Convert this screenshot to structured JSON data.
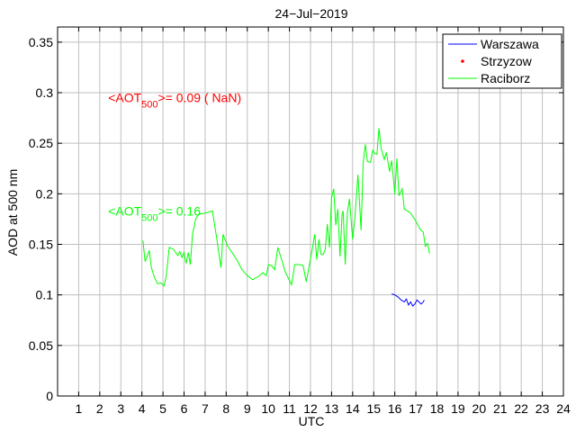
{
  "chart_data": {
    "type": "line",
    "title": "24−Jul−2019",
    "xlabel": "UTC",
    "ylabel": "AOD at 500 nm",
    "xlim": [
      0,
      24
    ],
    "ylim": [
      0,
      0.365
    ],
    "grid": true,
    "legend_position": "top-right",
    "x_ticks": [
      "1",
      "2",
      "3",
      "4",
      "5",
      "6",
      "7",
      "8",
      "9",
      "10",
      "11",
      "12",
      "13",
      "14",
      "15",
      "16",
      "17",
      "18",
      "19",
      "20",
      "21",
      "22",
      "23",
      "24"
    ],
    "y_ticks": [
      "0",
      "0.05",
      "0.1",
      "0.15",
      "0.2",
      "0.25",
      "0.3",
      "0.35"
    ],
    "x_tick_values": [
      1,
      2,
      3,
      4,
      5,
      6,
      7,
      8,
      9,
      10,
      11,
      12,
      13,
      14,
      15,
      16,
      17,
      18,
      19,
      20,
      21,
      22,
      23,
      24
    ],
    "y_tick_values": [
      0,
      0.05,
      0.1,
      0.15,
      0.2,
      0.25,
      0.3,
      0.35
    ],
    "series": [
      {
        "name": "Warszawa",
        "color": "#0000ff",
        "style": "line",
        "points": [
          [
            15.85,
            0.101
          ],
          [
            16.0,
            0.1
          ],
          [
            16.15,
            0.098
          ],
          [
            16.3,
            0.095
          ],
          [
            16.45,
            0.093
          ],
          [
            16.55,
            0.096
          ],
          [
            16.65,
            0.09
          ],
          [
            16.75,
            0.093
          ],
          [
            16.85,
            0.089
          ],
          [
            16.95,
            0.091
          ],
          [
            17.05,
            0.095
          ],
          [
            17.15,
            0.093
          ],
          [
            17.25,
            0.091
          ],
          [
            17.35,
            0.093
          ],
          [
            17.4,
            0.095
          ]
        ]
      },
      {
        "name": "Strzyzow",
        "color": "#ff0000",
        "style": "marker",
        "points": []
      },
      {
        "name": "Raciborz",
        "color": "#00ff00",
        "style": "line",
        "points": [
          [
            4.05,
            0.154
          ],
          [
            4.15,
            0.133
          ],
          [
            4.25,
            0.138
          ],
          [
            4.35,
            0.144
          ],
          [
            4.45,
            0.127
          ],
          [
            4.6,
            0.117
          ],
          [
            4.75,
            0.111
          ],
          [
            4.9,
            0.112
          ],
          [
            5.05,
            0.109
          ],
          [
            5.15,
            0.118
          ],
          [
            5.3,
            0.147
          ],
          [
            5.5,
            0.145
          ],
          [
            5.7,
            0.139
          ],
          [
            5.8,
            0.143
          ],
          [
            5.9,
            0.137
          ],
          [
            6.0,
            0.142
          ],
          [
            6.1,
            0.131
          ],
          [
            6.2,
            0.142
          ],
          [
            6.3,
            0.13
          ],
          [
            6.4,
            0.16
          ],
          [
            6.55,
            0.175
          ],
          [
            6.7,
            0.18
          ],
          [
            7.0,
            0.181
          ],
          [
            7.35,
            0.183
          ],
          [
            7.55,
            0.156
          ],
          [
            7.75,
            0.127
          ],
          [
            7.85,
            0.16
          ],
          [
            8.05,
            0.149
          ],
          [
            8.5,
            0.135
          ],
          [
            8.75,
            0.125
          ],
          [
            9.0,
            0.119
          ],
          [
            9.25,
            0.115
          ],
          [
            9.5,
            0.118
          ],
          [
            9.75,
            0.122
          ],
          [
            9.9,
            0.119
          ],
          [
            10.0,
            0.13
          ],
          [
            10.15,
            0.129
          ],
          [
            10.3,
            0.125
          ],
          [
            10.45,
            0.147
          ],
          [
            10.6,
            0.137
          ],
          [
            10.8,
            0.123
          ],
          [
            11.1,
            0.11
          ],
          [
            11.25,
            0.13
          ],
          [
            11.5,
            0.13
          ],
          [
            11.65,
            0.129
          ],
          [
            11.8,
            0.113
          ],
          [
            11.95,
            0.13
          ],
          [
            12.1,
            0.147
          ],
          [
            12.2,
            0.16
          ],
          [
            12.3,
            0.135
          ],
          [
            12.4,
            0.155
          ],
          [
            12.5,
            0.14
          ],
          [
            12.6,
            0.14
          ],
          [
            12.7,
            0.145
          ],
          [
            12.8,
            0.17
          ],
          [
            12.9,
            0.147
          ],
          [
            13.0,
            0.196
          ],
          [
            13.1,
            0.205
          ],
          [
            13.2,
            0.169
          ],
          [
            13.3,
            0.185
          ],
          [
            13.4,
            0.138
          ],
          [
            13.5,
            0.18
          ],
          [
            13.55,
            0.183
          ],
          [
            13.65,
            0.13
          ],
          [
            13.75,
            0.182
          ],
          [
            13.85,
            0.195
          ],
          [
            14.0,
            0.155
          ],
          [
            14.1,
            0.175
          ],
          [
            14.25,
            0.219
          ],
          [
            14.4,
            0.164
          ],
          [
            14.5,
            0.23
          ],
          [
            14.6,
            0.249
          ],
          [
            14.7,
            0.232
          ],
          [
            14.85,
            0.231
          ],
          [
            14.95,
            0.243
          ],
          [
            15.05,
            0.24
          ],
          [
            15.15,
            0.239
          ],
          [
            15.25,
            0.265
          ],
          [
            15.35,
            0.245
          ],
          [
            15.5,
            0.234
          ],
          [
            15.6,
            0.241
          ],
          [
            15.75,
            0.222
          ],
          [
            15.85,
            0.233
          ],
          [
            16.0,
            0.2
          ],
          [
            16.1,
            0.235
          ],
          [
            16.2,
            0.198
          ],
          [
            16.35,
            0.205
          ],
          [
            16.45,
            0.185
          ],
          [
            16.75,
            0.181
          ],
          [
            17.0,
            0.173
          ],
          [
            17.2,
            0.165
          ],
          [
            17.35,
            0.162
          ],
          [
            17.45,
            0.148
          ],
          [
            17.55,
            0.151
          ],
          [
            17.65,
            0.141
          ]
        ]
      }
    ],
    "legend": [
      "Warszawa",
      "Strzyzow",
      "Raciborz"
    ],
    "annotations": [
      {
        "prefix": "<AOT",
        "sub": "500",
        "suffix": ">= 0.09 ( NaN)",
        "color": "#ff0000",
        "x": 2.4,
        "y": 0.295
      },
      {
        "prefix": "<AOT",
        "sub": "500",
        "suffix": ">= 0.16",
        "color": "#00ff00",
        "x": 2.4,
        "y": 0.183
      }
    ]
  }
}
